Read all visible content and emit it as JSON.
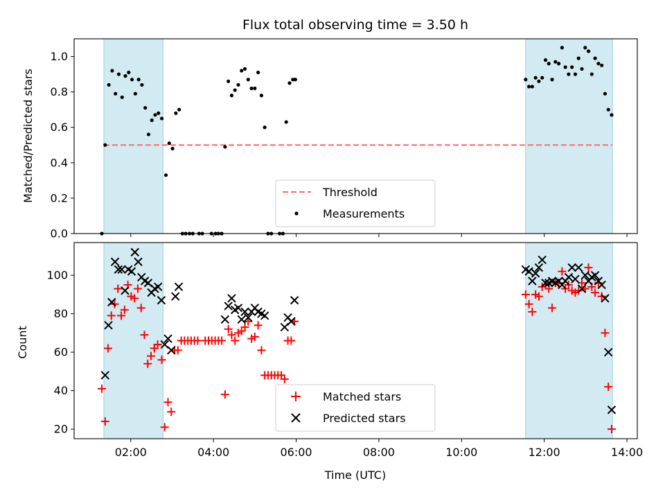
{
  "chart_data": [
    {
      "type": "scatter",
      "title": "Flux total observing time = 3.50 h",
      "ylabel": "Matched/Predicted stars",
      "xlabel": "",
      "xlim_hours": [
        0.63,
        14.25
      ],
      "ylim": [
        0,
        1.1
      ],
      "yticks": [
        0.0,
        0.2,
        0.4,
        0.6,
        0.8,
        1.0
      ],
      "ytick_labels": [
        "0.0",
        "0.2",
        "0.4",
        "0.6",
        "0.8",
        "1.0"
      ],
      "grid": false,
      "legend_position": "lower-center",
      "shaded_intervals_hours": [
        [
          1.35,
          2.78
        ],
        [
          11.55,
          13.65
        ]
      ],
      "shade_color": "#add8e6",
      "threshold": {
        "name": "Threshold",
        "value": 0.5,
        "x_range_hours": [
          1.35,
          13.65
        ],
        "color": "#ff6666"
      },
      "series": [
        {
          "name": "Measurements",
          "color": "#000000",
          "points": [
            [
              1.3,
              0.0
            ],
            [
              1.38,
              0.5
            ],
            [
              1.47,
              0.84
            ],
            [
              1.55,
              0.92
            ],
            [
              1.63,
              0.79
            ],
            [
              1.71,
              0.9
            ],
            [
              1.79,
              0.77
            ],
            [
              1.87,
              0.89
            ],
            [
              1.95,
              0.91
            ],
            [
              2.03,
              0.87
            ],
            [
              2.11,
              0.79
            ],
            [
              2.19,
              0.87
            ],
            [
              2.27,
              0.84
            ],
            [
              2.35,
              0.71
            ],
            [
              2.43,
              0.56
            ],
            [
              2.51,
              0.64
            ],
            [
              2.59,
              0.67
            ],
            [
              2.67,
              0.68
            ],
            [
              2.75,
              0.65
            ],
            [
              2.85,
              0.33
            ],
            [
              2.93,
              0.51
            ],
            [
              3.01,
              0.48
            ],
            [
              3.09,
              0.68
            ],
            [
              3.17,
              0.7
            ],
            [
              3.25,
              0.0
            ],
            [
              3.33,
              0.0
            ],
            [
              3.42,
              0.0
            ],
            [
              3.5,
              0.0
            ],
            [
              3.65,
              0.0
            ],
            [
              3.73,
              0.0
            ],
            [
              3.95,
              0.0
            ],
            [
              4.05,
              0.0
            ],
            [
              4.12,
              0.0
            ],
            [
              4.2,
              0.0
            ],
            [
              4.28,
              0.49
            ],
            [
              4.36,
              0.86
            ],
            [
              4.44,
              0.78
            ],
            [
              4.52,
              0.81
            ],
            [
              4.6,
              0.84
            ],
            [
              4.68,
              0.92
            ],
            [
              4.76,
              0.93
            ],
            [
              4.84,
              0.87
            ],
            [
              4.92,
              0.82
            ],
            [
              5.0,
              0.82
            ],
            [
              5.08,
              0.91
            ],
            [
              5.16,
              0.78
            ],
            [
              5.24,
              0.6
            ],
            [
              5.32,
              0.0
            ],
            [
              5.4,
              0.0
            ],
            [
              5.6,
              0.0
            ],
            [
              5.68,
              0.0
            ],
            [
              5.76,
              0.63
            ],
            [
              5.84,
              0.85
            ],
            [
              5.92,
              0.87
            ],
            [
              5.98,
              0.87
            ],
            [
              11.55,
              0.87
            ],
            [
              11.63,
              0.83
            ],
            [
              11.71,
              0.83
            ],
            [
              11.79,
              0.88
            ],
            [
              11.87,
              0.86
            ],
            [
              11.95,
              0.88
            ],
            [
              12.03,
              0.98
            ],
            [
              12.11,
              0.96
            ],
            [
              12.19,
              0.87
            ],
            [
              12.27,
              0.97
            ],
            [
              12.35,
              0.96
            ],
            [
              12.43,
              1.05
            ],
            [
              12.51,
              0.94
            ],
            [
              12.59,
              0.9
            ],
            [
              12.67,
              0.94
            ],
            [
              12.75,
              0.9
            ],
            [
              12.83,
              0.99
            ],
            [
              12.91,
              0.93
            ],
            [
              12.99,
              1.05
            ],
            [
              13.07,
              1.03
            ],
            [
              13.15,
              0.9
            ],
            [
              13.23,
              0.99
            ],
            [
              13.31,
              0.96
            ],
            [
              13.39,
              0.95
            ],
            [
              13.47,
              0.79
            ],
            [
              13.55,
              0.7
            ],
            [
              13.63,
              0.67
            ]
          ]
        }
      ]
    },
    {
      "type": "scatter",
      "xlabel": "Time (UTC)",
      "ylabel": "Count",
      "xlim_hours": [
        0.63,
        14.25
      ],
      "ylim": [
        15,
        117
      ],
      "xticks_hours": [
        2,
        4,
        6,
        8,
        10,
        12,
        14
      ],
      "xtick_labels": [
        "02:00",
        "04:00",
        "06:00",
        "08:00",
        "10:00",
        "12:00",
        "14:00"
      ],
      "yticks": [
        20,
        40,
        60,
        80,
        100
      ],
      "ytick_labels": [
        "20",
        "40",
        "60",
        "80",
        "100"
      ],
      "grid": false,
      "legend_position": "lower-center",
      "shaded_intervals_hours": [
        [
          1.35,
          2.78
        ],
        [
          11.55,
          13.65
        ]
      ],
      "series": [
        {
          "name": "Matched stars",
          "marker": "+",
          "color": "#ff0000",
          "points": [
            [
              1.3,
              41
            ],
            [
              1.38,
              24
            ],
            [
              1.45,
              62
            ],
            [
              1.53,
              79
            ],
            [
              1.61,
              85
            ],
            [
              1.69,
              93
            ],
            [
              1.77,
              79
            ],
            [
              1.85,
              82
            ],
            [
              1.93,
              95
            ],
            [
              2.01,
              89
            ],
            [
              2.09,
              88
            ],
            [
              2.17,
              93
            ],
            [
              2.25,
              83
            ],
            [
              2.33,
              69
            ],
            [
              2.41,
              54
            ],
            [
              2.49,
              58
            ],
            [
              2.57,
              62
            ],
            [
              2.65,
              64
            ],
            [
              2.75,
              56
            ],
            [
              2.82,
              21
            ],
            [
              2.9,
              34
            ],
            [
              2.98,
              29
            ],
            [
              3.06,
              61
            ],
            [
              3.14,
              61
            ],
            [
              3.22,
              66
            ],
            [
              3.3,
              66
            ],
            [
              3.38,
              66
            ],
            [
              3.46,
              66
            ],
            [
              3.54,
              66
            ],
            [
              3.62,
              66
            ],
            [
              3.8,
              66
            ],
            [
              3.88,
              66
            ],
            [
              3.96,
              66
            ],
            [
              4.04,
              66
            ],
            [
              4.12,
              66
            ],
            [
              4.2,
              66
            ],
            [
              4.28,
              38
            ],
            [
              4.36,
              72
            ],
            [
              4.44,
              69
            ],
            [
              4.52,
              66
            ],
            [
              4.6,
              70
            ],
            [
              4.68,
              71
            ],
            [
              4.76,
              73
            ],
            [
              4.84,
              76
            ],
            [
              4.92,
              67
            ],
            [
              5.0,
              68
            ],
            [
              5.08,
              74
            ],
            [
              5.16,
              61
            ],
            [
              5.24,
              48
            ],
            [
              5.32,
              48
            ],
            [
              5.4,
              48
            ],
            [
              5.48,
              48
            ],
            [
              5.56,
              48
            ],
            [
              5.64,
              48
            ],
            [
              5.72,
              46
            ],
            [
              5.8,
              66
            ],
            [
              5.88,
              66
            ],
            [
              5.96,
              76
            ],
            [
              11.55,
              90
            ],
            [
              11.63,
              85
            ],
            [
              11.71,
              81
            ],
            [
              11.79,
              90
            ],
            [
              11.87,
              89
            ],
            [
              11.95,
              94
            ],
            [
              12.03,
              95
            ],
            [
              12.11,
              93
            ],
            [
              12.19,
              83
            ],
            [
              12.27,
              96
            ],
            [
              12.35,
              96
            ],
            [
              12.43,
              102
            ],
            [
              12.51,
              93
            ],
            [
              12.59,
              95
            ],
            [
              12.67,
              92
            ],
            [
              12.75,
              91
            ],
            [
              12.83,
              92
            ],
            [
              12.91,
              96
            ],
            [
              12.99,
              93
            ],
            [
              13.07,
              104
            ],
            [
              13.15,
              94
            ],
            [
              13.23,
              91
            ],
            [
              13.31,
              96
            ],
            [
              13.39,
              89
            ],
            [
              13.47,
              70
            ],
            [
              13.55,
              42
            ],
            [
              13.63,
              20
            ]
          ]
        },
        {
          "name": "Predicted stars",
          "marker": "x",
          "color": "#000000",
          "points": [
            [
              1.38,
              48
            ],
            [
              1.46,
              74
            ],
            [
              1.54,
              86
            ],
            [
              1.62,
              107
            ],
            [
              1.7,
              103
            ],
            [
              1.78,
              103
            ],
            [
              1.86,
              92
            ],
            [
              1.94,
              103
            ],
            [
              2.02,
              102
            ],
            [
              2.1,
              112
            ],
            [
              2.18,
              107
            ],
            [
              2.26,
              99
            ],
            [
              2.34,
              97
            ],
            [
              2.42,
              96
            ],
            [
              2.5,
              91
            ],
            [
              2.58,
              93
            ],
            [
              2.66,
              94
            ],
            [
              2.74,
              87
            ],
            [
              2.82,
              64
            ],
            [
              2.9,
              67
            ],
            [
              2.98,
              61
            ],
            [
              3.08,
              89
            ],
            [
              3.16,
              94
            ],
            [
              4.28,
              77
            ],
            [
              4.36,
              84
            ],
            [
              4.44,
              88
            ],
            [
              4.52,
              82
            ],
            [
              4.6,
              83
            ],
            [
              4.68,
              77
            ],
            [
              4.76,
              81
            ],
            [
              4.84,
              78
            ],
            [
              4.92,
              81
            ],
            [
              5.0,
              83
            ],
            [
              5.08,
              81
            ],
            [
              5.16,
              80
            ],
            [
              5.24,
              79
            ],
            [
              5.72,
              73
            ],
            [
              5.8,
              78
            ],
            [
              5.88,
              76
            ],
            [
              5.96,
              87
            ],
            [
              11.55,
              103
            ],
            [
              11.63,
              102
            ],
            [
              11.71,
              97
            ],
            [
              11.79,
              101
            ],
            [
              11.87,
              104
            ],
            [
              11.95,
              108
            ],
            [
              12.03,
              96
            ],
            [
              12.11,
              96
            ],
            [
              12.19,
              97
            ],
            [
              12.27,
              96
            ],
            [
              12.35,
              97
            ],
            [
              12.43,
              95
            ],
            [
              12.51,
              97
            ],
            [
              12.59,
              99
            ],
            [
              12.67,
              104
            ],
            [
              12.75,
              98
            ],
            [
              12.83,
              104
            ],
            [
              12.91,
              93
            ],
            [
              12.99,
              100
            ],
            [
              13.07,
              97
            ],
            [
              13.15,
              99
            ],
            [
              13.23,
              100
            ],
            [
              13.31,
              97
            ],
            [
              13.39,
              95
            ],
            [
              13.47,
              88
            ],
            [
              13.55,
              60
            ],
            [
              13.63,
              30
            ]
          ]
        }
      ]
    }
  ]
}
